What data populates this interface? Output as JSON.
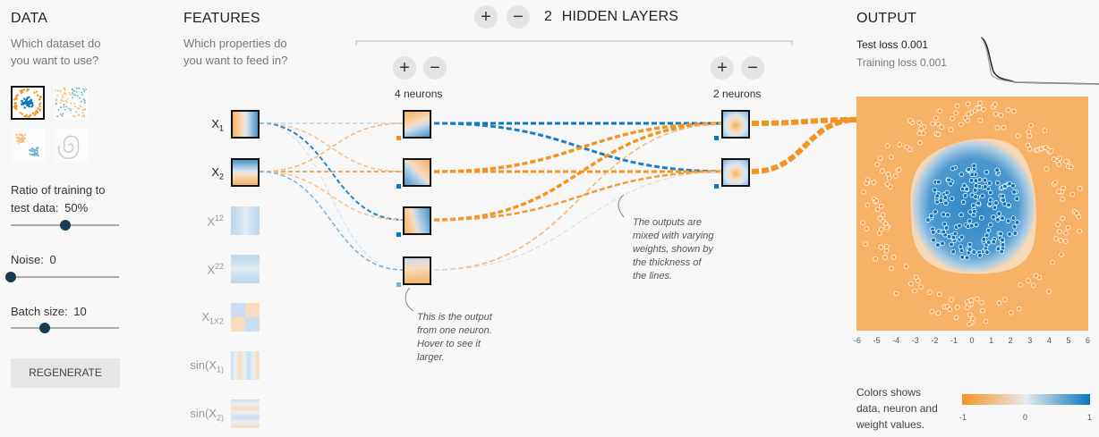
{
  "data_panel": {
    "title": "DATA",
    "question": [
      "Which dataset do",
      "you want to use?"
    ],
    "ratio_label": "Ratio of training to",
    "ratio_label2": "test data:",
    "ratio_value": "50%",
    "ratio_level": 0.5,
    "noise_label": "Noise:",
    "noise_value": "0",
    "noise_level": 0.0,
    "batch_label": "Batch size:",
    "batch_value": "10",
    "batch_level": 0.31,
    "regenerate": "REGENERATE"
  },
  "features_panel": {
    "title": "FEATURES",
    "question": [
      "Which properties do",
      "you want to feed in?"
    ],
    "features": [
      {
        "base": "X",
        "sup": "1"
      },
      {
        "base": "X",
        "sup": "2"
      },
      {
        "base": "X",
        "sup": "12"
      },
      {
        "base": "X",
        "sup": "22"
      },
      {
        "base": "X",
        "sup": "1X2"
      },
      {
        "base": "sin(X",
        "sup": "1)"
      },
      {
        "base": "sin(X",
        "sup": "2)"
      }
    ]
  },
  "network": {
    "plus": "+",
    "minus": "−",
    "layer_count": "2",
    "hidden_layers_label": "HIDDEN LAYERS",
    "layer1_label": "4 neurons",
    "layer2_label": "2 neurons",
    "note1": [
      "This is the output",
      "from one neuron.",
      "Hover to see it",
      "larger."
    ],
    "note2": [
      "The outputs are",
      "mixed with varying",
      "weights, shown by",
      "the thickness of",
      "the lines."
    ]
  },
  "output_panel": {
    "title": "OUTPUT",
    "test_loss_label": "Test loss",
    "test_loss_value": "0.001",
    "training_loss_label": "Training loss",
    "training_loss_value": "0.001",
    "x_ticks": [
      "-6",
      "-5",
      "-4",
      "-3",
      "-2",
      "-1",
      "0",
      "1",
      "2",
      "3",
      "4",
      "5",
      "6"
    ],
    "legend_text": [
      "Colors shows",
      "data, neuron and",
      "weight values."
    ],
    "legend_ticks": [
      "-1",
      "0",
      "1"
    ]
  },
  "colors": {
    "orange": "#f59322",
    "blue": "#0877bd",
    "knob": "#183d4e",
    "background": "#f7f7f7"
  }
}
